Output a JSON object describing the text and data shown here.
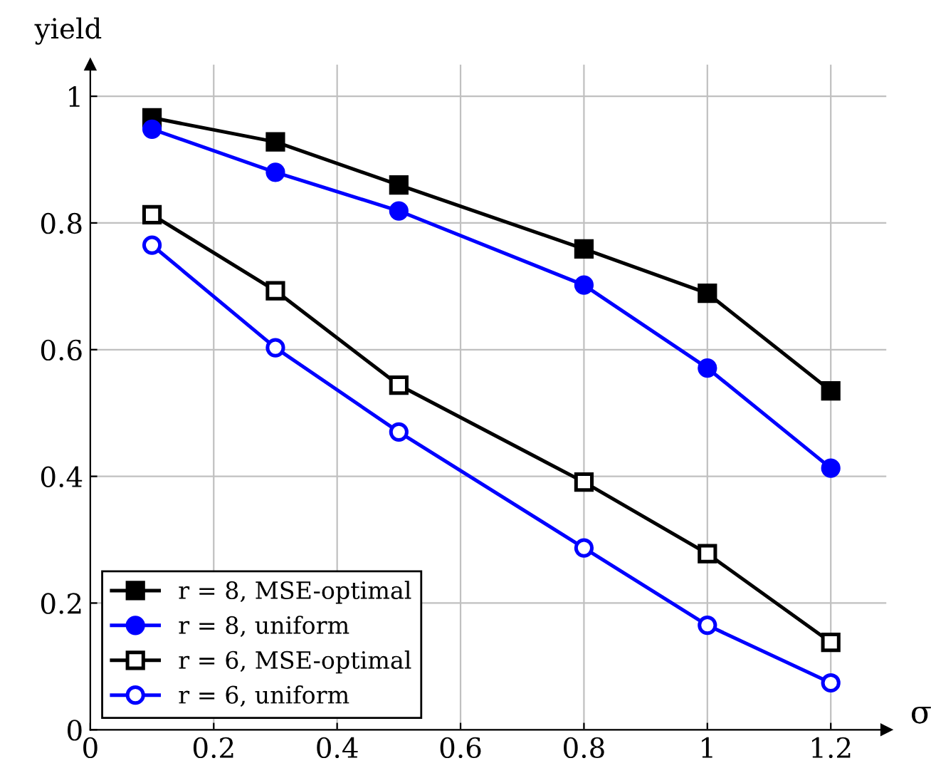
{
  "chart_data": {
    "type": "line",
    "xlabel": "σ",
    "ylabel": "yield",
    "x": [
      0.1,
      0.3,
      0.5,
      0.8,
      1,
      1.2
    ],
    "series": [
      {
        "name": "r = 8, MSE-optimal",
        "color": "#000000",
        "marker": "square",
        "values": [
          0.966,
          0.928,
          0.86,
          0.759,
          0.689,
          0.535
        ]
      },
      {
        "name": "r = 8, uniform",
        "color": "#0000ff",
        "marker": "circle",
        "values": [
          0.948,
          0.88,
          0.819,
          0.702,
          0.571,
          0.413
        ]
      },
      {
        "name": "r = 6, MSE-optimal",
        "color": "#000000",
        "marker": "square",
        "values": [
          0.813,
          0.693,
          0.544,
          0.391,
          0.278,
          0.138
        ]
      },
      {
        "name": "r = 6, uniform",
        "color": "#0000ff",
        "marker": "circle",
        "values": [
          0.765,
          0.603,
          0.47,
          0.287,
          0.165,
          0.074
        ]
      }
    ],
    "xlim": [
      0,
      1.29
    ],
    "ylim": [
      0,
      1.05
    ],
    "xticks": [
      0,
      0.2,
      0.4,
      0.6,
      0.8,
      1,
      1.2
    ],
    "yticks": [
      0,
      0.2,
      0.4,
      0.6,
      0.8,
      1
    ],
    "grid": true,
    "legend": "bottom left",
    "line_style": "solid"
  }
}
